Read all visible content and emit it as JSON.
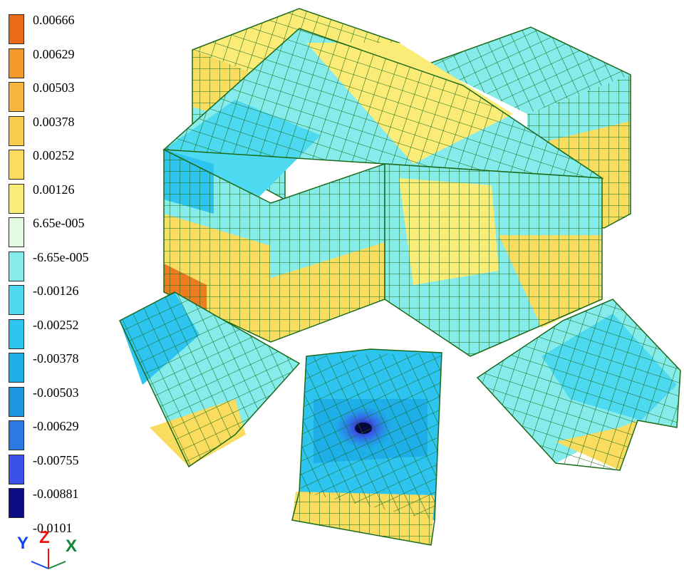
{
  "legend": {
    "levels": [
      {
        "label": "0.00666",
        "color": "#ec6a16"
      },
      {
        "label": "0.00629",
        "color": "#f39a2a"
      },
      {
        "label": "0.00503",
        "color": "#f6b53c"
      },
      {
        "label": "0.00378",
        "color": "#f8cd4c"
      },
      {
        "label": "0.00252",
        "color": "#fadc5e"
      },
      {
        "label": "0.00126",
        "color": "#fbec78"
      },
      {
        "label": "6.65e-005",
        "color": "#e2fae0"
      },
      {
        "label": "-6.65e-005",
        "color": "#86eceb"
      },
      {
        "label": "-0.00126",
        "color": "#4dd9f0"
      },
      {
        "label": "-0.00252",
        "color": "#2ec4f0"
      },
      {
        "label": "-0.00378",
        "color": "#1eaee8"
      },
      {
        "label": "-0.00503",
        "color": "#1e96df"
      },
      {
        "label": "-0.00629",
        "color": "#2b79e2"
      },
      {
        "label": "-0.00755",
        "color": "#3a50e8"
      },
      {
        "label": "-0.00881",
        "color": "#0b0c86"
      }
    ],
    "min_label": "-0.0101"
  },
  "triad": {
    "y": "Y",
    "z": "Z",
    "x": "X",
    "y_color": "#1144ee",
    "z_color": "#ee1111",
    "x_color": "#118833"
  },
  "mesh_color": "#1a6a1a"
}
